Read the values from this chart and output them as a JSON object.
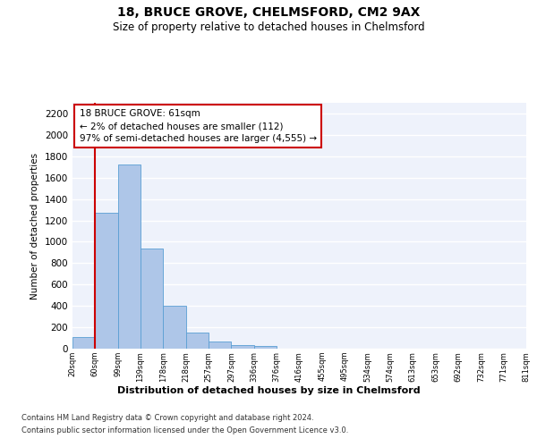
{
  "title_line1": "18, BRUCE GROVE, CHELMSFORD, CM2 9AX",
  "title_line2": "Size of property relative to detached houses in Chelmsford",
  "xlabel": "Distribution of detached houses by size in Chelmsford",
  "ylabel": "Number of detached properties",
  "bar_values": [
    112,
    1270,
    1720,
    940,
    405,
    150,
    65,
    35,
    25,
    0,
    0,
    0,
    0,
    0,
    0,
    0,
    0,
    0,
    0,
    0
  ],
  "bin_labels": [
    "20sqm",
    "60sqm",
    "99sqm",
    "139sqm",
    "178sqm",
    "218sqm",
    "257sqm",
    "297sqm",
    "336sqm",
    "376sqm",
    "416sqm",
    "455sqm",
    "495sqm",
    "534sqm",
    "574sqm",
    "613sqm",
    "653sqm",
    "692sqm",
    "732sqm",
    "771sqm",
    "811sqm"
  ],
  "bar_color": "#aec6e8",
  "bar_edge_color": "#5a9fd4",
  "annotation_text_line1": "18 BRUCE GROVE: 61sqm",
  "annotation_text_line2": "← 2% of detached houses are smaller (112)",
  "annotation_text_line3": "97% of semi-detached houses are larger (4,555) →",
  "annotation_box_color": "#ffffff",
  "annotation_box_edge_color": "#cc0000",
  "red_line_color": "#cc0000",
  "ylim": [
    0,
    2300
  ],
  "yticks": [
    0,
    200,
    400,
    600,
    800,
    1000,
    1200,
    1400,
    1600,
    1800,
    2000,
    2200
  ],
  "footer_line1": "Contains HM Land Registry data © Crown copyright and database right 2024.",
  "footer_line2": "Contains public sector information licensed under the Open Government Licence v3.0.",
  "background_color": "#eef2fb",
  "grid_color": "#ffffff",
  "fig_background": "#ffffff"
}
